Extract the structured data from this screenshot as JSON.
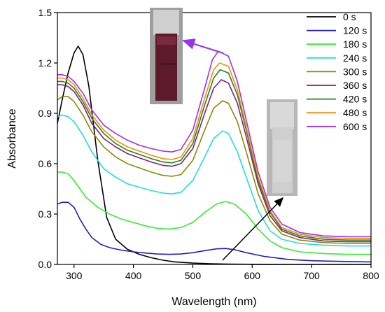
{
  "chart_data": {
    "type": "line",
    "xlabel": "Wavelength (nm)",
    "ylabel": "Absorbance",
    "xlim": [
      272,
      800
    ],
    "ylim": [
      0,
      1.5
    ],
    "xticks": [
      300,
      400,
      500,
      600,
      700,
      800
    ],
    "yticks": [
      0.0,
      0.3,
      0.6,
      0.9,
      1.2,
      1.5
    ],
    "ytick_labels": [
      "0.0",
      "0.3",
      "0.6",
      "0.9",
      "1.2",
      "1.5"
    ],
    "legend_position": "top-right",
    "series": [
      {
        "name": "0 s",
        "color": "#000000",
        "x": [
          272,
          280,
          290,
          300,
          307,
          315,
          325,
          340,
          355,
          370,
          390,
          410,
          430,
          450,
          470,
          500,
          530,
          560,
          600,
          650,
          700,
          750,
          800
        ],
        "y": [
          0.84,
          0.98,
          1.14,
          1.26,
          1.3,
          1.25,
          1.06,
          0.62,
          0.28,
          0.15,
          0.09,
          0.06,
          0.04,
          0.025,
          0.015,
          0.008,
          0.004,
          0.002,
          0.001,
          0.0,
          0.0,
          0.0,
          0.0
        ]
      },
      {
        "name": "120 s",
        "color": "#1f1fbf",
        "x": [
          272,
          280,
          290,
          300,
          310,
          320,
          330,
          345,
          360,
          380,
          400,
          420,
          440,
          460,
          480,
          500,
          520,
          540,
          555,
          570,
          590,
          620,
          660,
          700,
          750,
          800
        ],
        "y": [
          0.36,
          0.37,
          0.37,
          0.34,
          0.27,
          0.21,
          0.16,
          0.12,
          0.1,
          0.085,
          0.075,
          0.068,
          0.062,
          0.06,
          0.062,
          0.07,
          0.082,
          0.093,
          0.095,
          0.088,
          0.07,
          0.048,
          0.03,
          0.022,
          0.018,
          0.015
        ]
      },
      {
        "name": "180 s",
        "color": "#33ee33",
        "x": [
          272,
          280,
          290,
          300,
          310,
          320,
          340,
          360,
          380,
          400,
          420,
          440,
          460,
          480,
          500,
          520,
          540,
          555,
          570,
          590,
          610,
          630,
          650,
          680,
          720,
          760,
          800
        ],
        "y": [
          0.55,
          0.55,
          0.54,
          0.5,
          0.45,
          0.4,
          0.34,
          0.3,
          0.27,
          0.25,
          0.23,
          0.215,
          0.21,
          0.22,
          0.25,
          0.31,
          0.36,
          0.375,
          0.36,
          0.3,
          0.21,
          0.14,
          0.1,
          0.075,
          0.065,
          0.06,
          0.06
        ]
      },
      {
        "name": "240 s",
        "color": "#22dddd",
        "x": [
          272,
          280,
          290,
          300,
          315,
          330,
          350,
          370,
          390,
          410,
          430,
          450,
          465,
          480,
          500,
          520,
          535,
          550,
          560,
          575,
          590,
          610,
          630,
          650,
          680,
          720,
          760,
          800
        ],
        "y": [
          0.88,
          0.89,
          0.88,
          0.85,
          0.77,
          0.67,
          0.57,
          0.52,
          0.48,
          0.46,
          0.44,
          0.425,
          0.42,
          0.43,
          0.5,
          0.64,
          0.75,
          0.795,
          0.78,
          0.67,
          0.52,
          0.32,
          0.2,
          0.15,
          0.125,
          0.115,
          0.11,
          0.11
        ]
      },
      {
        "name": "300 s",
        "color": "#8a8a00",
        "x": [
          272,
          280,
          290,
          300,
          315,
          330,
          350,
          370,
          390,
          410,
          430,
          450,
          465,
          480,
          500,
          520,
          535,
          550,
          560,
          575,
          590,
          610,
          630,
          650,
          680,
          720,
          760,
          800
        ],
        "y": [
          0.98,
          1.0,
          1.0,
          0.97,
          0.89,
          0.79,
          0.7,
          0.64,
          0.6,
          0.575,
          0.55,
          0.53,
          0.525,
          0.535,
          0.62,
          0.8,
          0.93,
          0.975,
          0.96,
          0.85,
          0.67,
          0.42,
          0.26,
          0.18,
          0.145,
          0.13,
          0.125,
          0.125
        ]
      },
      {
        "name": "360 s",
        "color": "#8b1a7a",
        "x": [
          272,
          280,
          290,
          300,
          315,
          330,
          350,
          370,
          390,
          410,
          430,
          450,
          465,
          480,
          500,
          520,
          535,
          548,
          560,
          575,
          590,
          610,
          630,
          650,
          680,
          720,
          760,
          800
        ],
        "y": [
          1.07,
          1.07,
          1.06,
          1.03,
          0.95,
          0.84,
          0.75,
          0.7,
          0.66,
          0.635,
          0.61,
          0.59,
          0.585,
          0.6,
          0.69,
          0.9,
          1.05,
          1.1,
          1.08,
          0.96,
          0.76,
          0.48,
          0.29,
          0.2,
          0.16,
          0.14,
          0.135,
          0.135
        ]
      },
      {
        "name": "420 s",
        "color": "#1a8a1a",
        "x": [
          272,
          280,
          290,
          300,
          315,
          330,
          350,
          370,
          390,
          410,
          430,
          450,
          465,
          480,
          500,
          520,
          535,
          546,
          560,
          575,
          590,
          610,
          630,
          650,
          680,
          720,
          760,
          800
        ],
        "y": [
          1.09,
          1.09,
          1.08,
          1.05,
          0.97,
          0.87,
          0.78,
          0.72,
          0.68,
          0.655,
          0.63,
          0.61,
          0.605,
          0.62,
          0.72,
          0.95,
          1.11,
          1.16,
          1.14,
          1.01,
          0.8,
          0.5,
          0.31,
          0.21,
          0.17,
          0.15,
          0.145,
          0.145
        ]
      },
      {
        "name": "480 s",
        "color": "#ff8c00",
        "x": [
          272,
          280,
          290,
          300,
          315,
          330,
          350,
          370,
          390,
          410,
          430,
          450,
          465,
          480,
          500,
          520,
          535,
          545,
          560,
          575,
          590,
          610,
          630,
          650,
          680,
          720,
          760,
          800
        ],
        "y": [
          1.11,
          1.11,
          1.1,
          1.07,
          0.99,
          0.89,
          0.8,
          0.74,
          0.7,
          0.675,
          0.65,
          0.63,
          0.625,
          0.64,
          0.75,
          0.99,
          1.16,
          1.2,
          1.18,
          1.04,
          0.82,
          0.52,
          0.32,
          0.22,
          0.18,
          0.16,
          0.155,
          0.155
        ]
      },
      {
        "name": "600 s",
        "color": "#9933ee",
        "x": [
          272,
          280,
          290,
          300,
          315,
          330,
          350,
          370,
          390,
          410,
          430,
          450,
          465,
          480,
          500,
          520,
          533,
          543,
          560,
          575,
          590,
          610,
          630,
          650,
          680,
          720,
          760,
          800
        ],
        "y": [
          1.13,
          1.13,
          1.12,
          1.09,
          1.02,
          0.92,
          0.83,
          0.78,
          0.74,
          0.71,
          0.69,
          0.675,
          0.67,
          0.685,
          0.8,
          1.05,
          1.22,
          1.27,
          1.24,
          1.09,
          0.86,
          0.55,
          0.34,
          0.24,
          0.19,
          0.17,
          0.165,
          0.165
        ]
      }
    ]
  }
}
